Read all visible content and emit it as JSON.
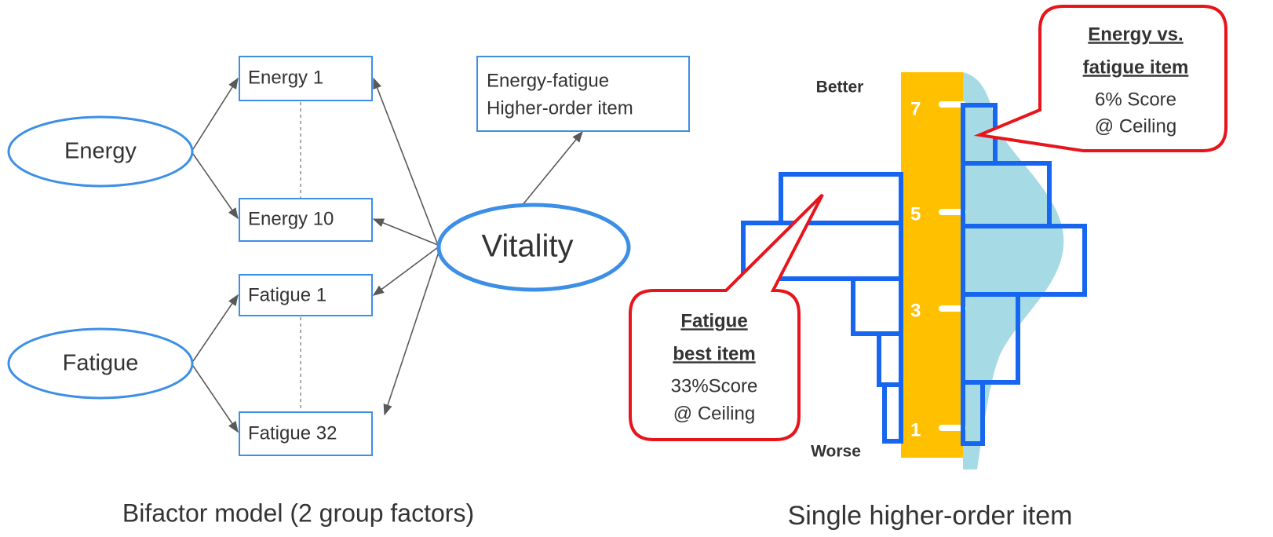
{
  "left": {
    "nodes": [
      {
        "label": "Energy"
      },
      {
        "label": "Fatigue"
      },
      {
        "label": "Energy 1"
      },
      {
        "label": "Energy 10"
      },
      {
        "label": "Fatigue 1"
      },
      {
        "label": "Fatigue 32"
      },
      {
        "label": "Vitality"
      },
      {
        "lines": [
          "Energy-fatigue",
          "Higher-order item"
        ]
      }
    ],
    "caption": "Bifactor model (2 group factors)"
  },
  "right": {
    "top_label": "Better",
    "bottom_label": "Worse",
    "scale_labels": [
      "7",
      "5",
      "3",
      "1"
    ],
    "callouts": [
      {
        "title": [
          "Energy vs.",
          "fatigue item"
        ],
        "text": [
          "6% Score",
          "@ Ceiling"
        ]
      },
      {
        "title": [
          "Fatigue",
          "best item"
        ],
        "text": [
          "33%Score",
          "@ Ceiling"
        ]
      }
    ],
    "caption": "Single higher-order item"
  }
}
